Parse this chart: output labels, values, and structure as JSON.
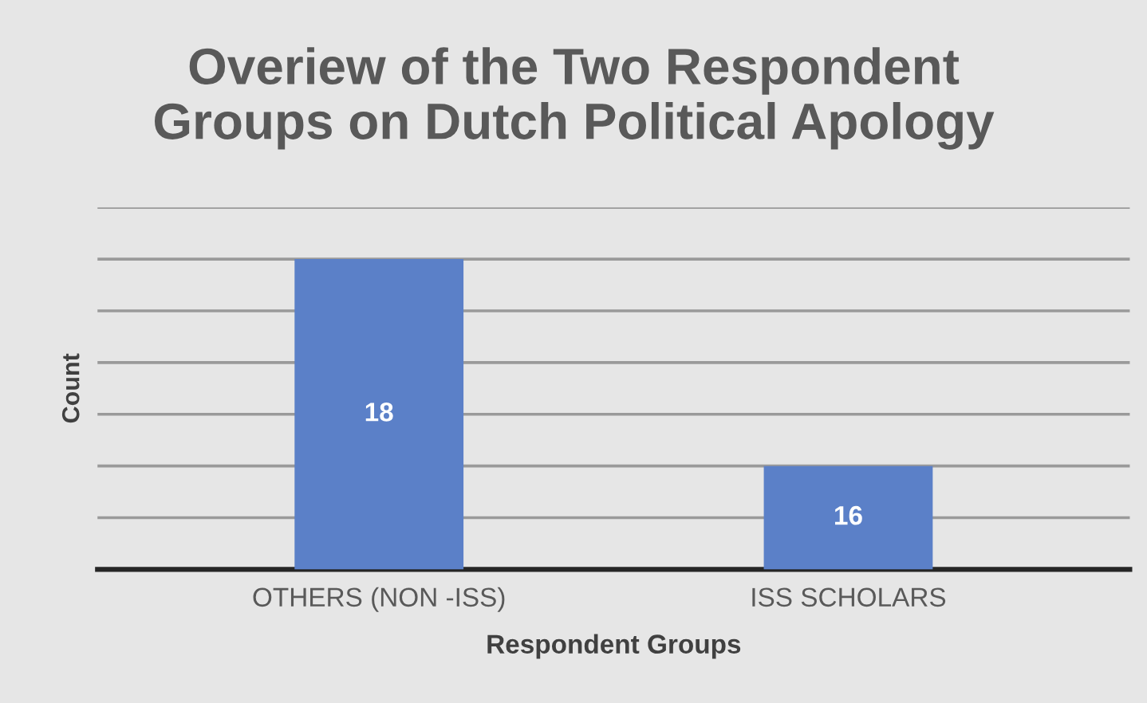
{
  "chart_data": {
    "type": "bar",
    "title": "Overiew of the Two Respondent\nGroups on Dutch Political Apology",
    "xlabel": "Respondent Groups",
    "ylabel": "Count",
    "categories": [
      "OTHERS (NON -ISS)",
      "ISS SCHOLARS"
    ],
    "values": [
      18,
      16
    ],
    "color": "#5b80c8",
    "ylim": [
      15,
      18.5
    ],
    "yticks": [
      {
        "value": 15,
        "label": null
      },
      {
        "value": 15.5,
        "label": null
      },
      {
        "value": 16,
        "label": null
      },
      {
        "value": 16.5,
        "label": null
      },
      {
        "value": 17,
        "label": null
      },
      {
        "value": 17.5,
        "label": null
      },
      {
        "value": 18,
        "label": null
      },
      {
        "value": 18.5,
        "label": null
      }
    ],
    "grid": "y",
    "tick_labels": "x",
    "data_labels": true
  }
}
